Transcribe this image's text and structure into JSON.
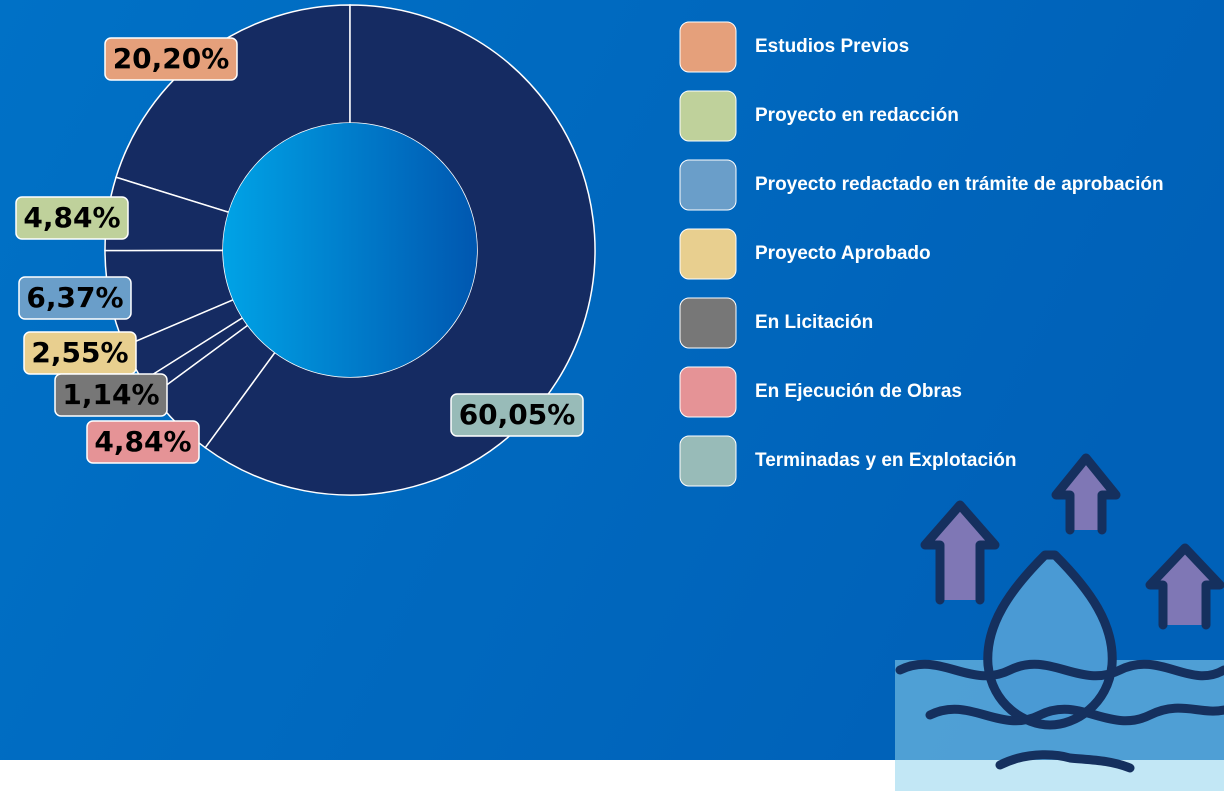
{
  "chart_data": {
    "type": "donut",
    "categories": [
      "Estudios Previos",
      "Proyecto en redacción",
      "Proyecto redactado en trámite de aprobación",
      "Proyecto Aprobado",
      "En Licitación",
      "En Ejecución de Obras",
      "Terminadas y en Explotación"
    ],
    "values": [
      20.2,
      4.84,
      6.37,
      2.55,
      1.14,
      4.84,
      60.05
    ],
    "value_labels": [
      "20,20%",
      "4,84%",
      "6,37%",
      "2,55%",
      "1,14%",
      "4,84%",
      "60,05%"
    ],
    "colors": [
      "#e5a07b",
      "#bfd19b",
      "#6a9ec9",
      "#e8cf8f",
      "#777777",
      "#e59396",
      "#98bbb8"
    ],
    "slice_color": "#152b62"
  }
}
